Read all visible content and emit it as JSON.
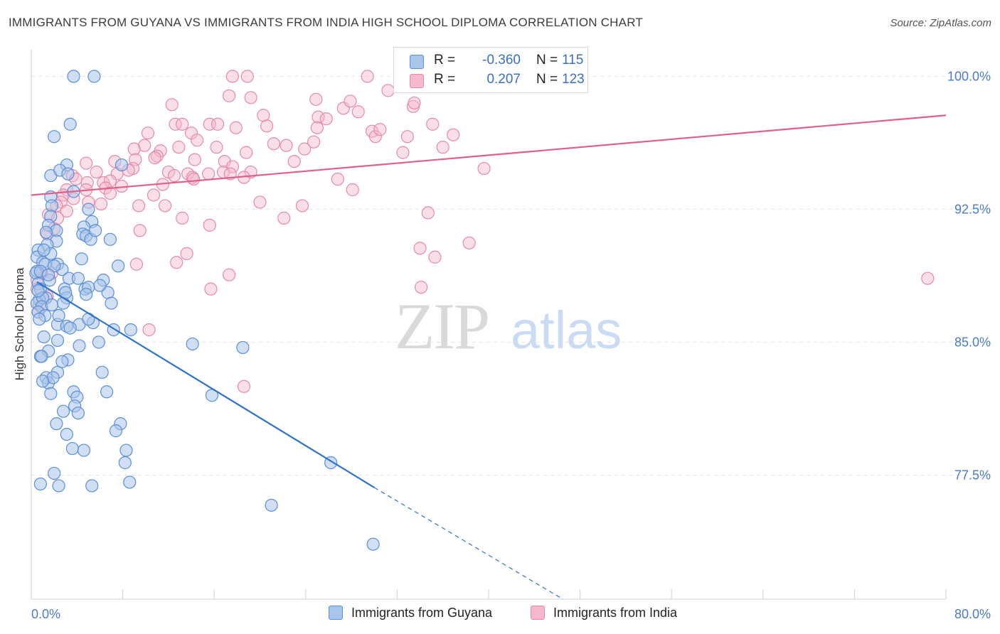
{
  "title": "IMMIGRANTS FROM GUYANA VS IMMIGRANTS FROM INDIA HIGH SCHOOL DIPLOMA CORRELATION CHART",
  "source": "Source: ZipAtlas.com",
  "watermark": {
    "zip": "ZIP",
    "atlas": "atlas"
  },
  "legend_top": {
    "rows": [
      {
        "r_label": "R =",
        "r_value": "-0.360",
        "n_label": "N =",
        "n_value": "115"
      },
      {
        "r_label": "R =",
        "r_value": "0.207",
        "n_label": "N =",
        "n_value": "123"
      }
    ]
  },
  "legend_bottom": {
    "items": [
      "Immigrants from Guyana",
      "Immigrants from India"
    ]
  },
  "colors": {
    "guyana_fill": "#a9c5ea",
    "guyana_stroke": "#5b8fd6",
    "guyana_line": "#2f72cc",
    "india_fill": "#f5b8cc",
    "india_stroke": "#e58aa8",
    "india_line": "#e0608d",
    "tick": "#4a7cc7",
    "grid": "#e3e3e3"
  },
  "chart_data": {
    "type": "scatter",
    "title": "IMMIGRANTS FROM GUYANA VS IMMIGRANTS FROM INDIA HIGH SCHOOL DIPLOMA CORRELATION CHART",
    "xlabel": "",
    "ylabel": "High School Diploma",
    "xlim": [
      0,
      80
    ],
    "ylim": [
      70.5,
      101.5
    ],
    "x_tick_labels": [
      "0.0%",
      "80.0%"
    ],
    "y_ticks": [
      77.5,
      85.0,
      92.5,
      100.0
    ],
    "y_tick_labels": [
      "77.5%",
      "85.0%",
      "92.5%",
      "100.0%"
    ],
    "grid": true,
    "legend_placement": "top-center",
    "series": [
      {
        "name": "Immigrants from Guyana",
        "R": -0.36,
        "N": 115,
        "trend": {
          "x": [
            0.5,
            30.0
          ],
          "y": [
            88.4,
            76.8
          ],
          "dashed_to": {
            "x": 46.5,
            "y": 70.5
          }
        },
        "points": [
          [
            3.7,
            100.0
          ],
          [
            5.5,
            100.0
          ],
          [
            3.4,
            97.3
          ],
          [
            2.0,
            96.6
          ],
          [
            3.1,
            95.0
          ],
          [
            1.7,
            94.4
          ],
          [
            2.5,
            94.7
          ],
          [
            3.2,
            94.5
          ],
          [
            7.9,
            95.0
          ],
          [
            3.7,
            93.5
          ],
          [
            1.7,
            93.2
          ],
          [
            1.8,
            92.7
          ],
          [
            5.0,
            92.5
          ],
          [
            1.7,
            92.1
          ],
          [
            5.3,
            91.8
          ],
          [
            1.5,
            91.6
          ],
          [
            4.6,
            91.5
          ],
          [
            2.2,
            91.3
          ],
          [
            4.5,
            91.1
          ],
          [
            4.8,
            91.0
          ],
          [
            5.2,
            90.8
          ],
          [
            6.9,
            90.8
          ],
          [
            2.2,
            90.7
          ],
          [
            1.4,
            90.5
          ],
          [
            0.6,
            90.2
          ],
          [
            0.5,
            89.8
          ],
          [
            1.7,
            90.0
          ],
          [
            1.0,
            89.5
          ],
          [
            2.3,
            89.4
          ],
          [
            7.6,
            89.3
          ],
          [
            1.2,
            89.4
          ],
          [
            2.7,
            89.1
          ],
          [
            0.5,
            89.0
          ],
          [
            0.4,
            88.9
          ],
          [
            3.3,
            88.6
          ],
          [
            4.1,
            88.6
          ],
          [
            6.3,
            88.5
          ],
          [
            1.6,
            88.5
          ],
          [
            0.6,
            88.3
          ],
          [
            0.8,
            88.0
          ],
          [
            2.9,
            88.0
          ],
          [
            4.7,
            88.0
          ],
          [
            5.0,
            88.1
          ],
          [
            6.7,
            87.8
          ],
          [
            4.8,
            87.7
          ],
          [
            1.3,
            87.5
          ],
          [
            3.1,
            87.5
          ],
          [
            0.7,
            87.4
          ],
          [
            0.5,
            87.2
          ],
          [
            1.0,
            87.5
          ],
          [
            2.8,
            87.2
          ],
          [
            0.9,
            87.0
          ],
          [
            0.6,
            86.7
          ],
          [
            1.2,
            86.5
          ],
          [
            2.3,
            86.0
          ],
          [
            3.1,
            85.9
          ],
          [
            4.2,
            86.0
          ],
          [
            3.4,
            85.8
          ],
          [
            5.4,
            86.1
          ],
          [
            7.2,
            85.7
          ],
          [
            8.7,
            85.7
          ],
          [
            2.3,
            85.1
          ],
          [
            4.2,
            84.8
          ],
          [
            1.5,
            84.5
          ],
          [
            3.2,
            84.0
          ],
          [
            5.9,
            85.0
          ],
          [
            14.1,
            84.9
          ],
          [
            18.5,
            84.7
          ],
          [
            0.8,
            84.2
          ],
          [
            2.3,
            83.3
          ],
          [
            1.3,
            83.0
          ],
          [
            1.5,
            82.7
          ],
          [
            6.2,
            83.3
          ],
          [
            1.7,
            82.1
          ],
          [
            3.7,
            82.2
          ],
          [
            6.6,
            82.2
          ],
          [
            4.0,
            81.9
          ],
          [
            15.8,
            82.0
          ],
          [
            3.8,
            81.4
          ],
          [
            2.8,
            81.1
          ],
          [
            4.1,
            81.0
          ],
          [
            2.2,
            80.4
          ],
          [
            7.8,
            80.4
          ],
          [
            7.4,
            80.0
          ],
          [
            3.6,
            79.0
          ],
          [
            4.6,
            78.9
          ],
          [
            8.3,
            78.9
          ],
          [
            8.2,
            78.2
          ],
          [
            2.0,
            77.6
          ],
          [
            0.8,
            77.0
          ],
          [
            8.6,
            77.1
          ],
          [
            2.4,
            76.9
          ],
          [
            5.3,
            76.9
          ],
          [
            26.2,
            78.2
          ],
          [
            21.0,
            75.8
          ],
          [
            29.9,
            73.6
          ],
          [
            1.1,
            90.2
          ],
          [
            0.8,
            89.0
          ],
          [
            2.0,
            89.3
          ],
          [
            1.5,
            88.8
          ],
          [
            0.6,
            87.9
          ],
          [
            1.8,
            87.1
          ],
          [
            3.0,
            87.8
          ],
          [
            0.7,
            86.3
          ],
          [
            2.4,
            86.5
          ],
          [
            1.1,
            85.3
          ],
          [
            0.9,
            84.2
          ],
          [
            1.9,
            83.0
          ],
          [
            5.0,
            86.3
          ],
          [
            2.7,
            83.9
          ],
          [
            1.0,
            82.8
          ],
          [
            3.1,
            79.8
          ],
          [
            6.0,
            88.2
          ],
          [
            7.0,
            87.2
          ],
          [
            4.4,
            89.7
          ],
          [
            5.6,
            91.3
          ],
          [
            1.3,
            91.2
          ]
        ]
      },
      {
        "name": "Immigrants from India",
        "R": 0.207,
        "N": 123,
        "trend": {
          "x": [
            0.0,
            80.0
          ],
          "y": [
            93.3,
            97.8
          ]
        },
        "points": [
          [
            17.6,
            100.0
          ],
          [
            18.9,
            100.0
          ],
          [
            29.4,
            100.0
          ],
          [
            31.2,
            99.2
          ],
          [
            17.3,
            98.9
          ],
          [
            19.2,
            98.8
          ],
          [
            24.9,
            98.7
          ],
          [
            12.3,
            98.4
          ],
          [
            27.3,
            98.2
          ],
          [
            28.6,
            98.0
          ],
          [
            33.4,
            98.3
          ],
          [
            33.5,
            98.5
          ],
          [
            20.3,
            97.8
          ],
          [
            25.1,
            97.7
          ],
          [
            12.6,
            97.3
          ],
          [
            13.2,
            97.3
          ],
          [
            15.6,
            97.3
          ],
          [
            16.3,
            97.3
          ],
          [
            17.9,
            97.1
          ],
          [
            20.6,
            97.2
          ],
          [
            25.0,
            97.1
          ],
          [
            14.0,
            96.8
          ],
          [
            10.2,
            96.8
          ],
          [
            29.8,
            96.9
          ],
          [
            30.1,
            96.6
          ],
          [
            32.9,
            96.6
          ],
          [
            36.9,
            96.7
          ],
          [
            14.5,
            96.4
          ],
          [
            21.2,
            96.2
          ],
          [
            22.3,
            96.1
          ],
          [
            24.7,
            96.3
          ],
          [
            9.9,
            96.1
          ],
          [
            23.9,
            95.9
          ],
          [
            9.0,
            95.9
          ],
          [
            11.3,
            95.8
          ],
          [
            12.9,
            96.0
          ],
          [
            16.2,
            96.0
          ],
          [
            11.0,
            95.5
          ],
          [
            18.8,
            95.7
          ],
          [
            9.1,
            95.3
          ],
          [
            10.8,
            95.4
          ],
          [
            7.3,
            95.2
          ],
          [
            14.3,
            95.3
          ],
          [
            16.9,
            95.2
          ],
          [
            4.8,
            95.1
          ],
          [
            23.0,
            95.2
          ],
          [
            17.6,
            94.9
          ],
          [
            8.9,
            94.8
          ],
          [
            13.7,
            94.5
          ],
          [
            14.1,
            94.3
          ],
          [
            15.5,
            94.5
          ],
          [
            16.8,
            94.6
          ],
          [
            17.4,
            94.5
          ],
          [
            19.2,
            94.6
          ],
          [
            12.0,
            94.6
          ],
          [
            8.5,
            94.7
          ],
          [
            5.7,
            94.6
          ],
          [
            7.5,
            94.5
          ],
          [
            12.5,
            94.4
          ],
          [
            3.6,
            94.4
          ],
          [
            3.9,
            94.2
          ],
          [
            14.2,
            94.2
          ],
          [
            18.6,
            94.3
          ],
          [
            4.9,
            94.0
          ],
          [
            6.3,
            94.0
          ],
          [
            6.9,
            94.1
          ],
          [
            7.9,
            93.8
          ],
          [
            3.1,
            93.6
          ],
          [
            4.8,
            93.6
          ],
          [
            6.5,
            93.7
          ],
          [
            6.9,
            93.4
          ],
          [
            10.7,
            93.3
          ],
          [
            11.5,
            93.9
          ],
          [
            2.8,
            93.3
          ],
          [
            3.7,
            93.1
          ],
          [
            2.6,
            92.9
          ],
          [
            5.0,
            92.9
          ],
          [
            6.1,
            92.8
          ],
          [
            9.4,
            92.7
          ],
          [
            11.7,
            92.7
          ],
          [
            20.0,
            92.9
          ],
          [
            2.2,
            92.7
          ],
          [
            3.1,
            92.4
          ],
          [
            1.5,
            92.2
          ],
          [
            2.3,
            92.0
          ],
          [
            13.2,
            92.0
          ],
          [
            22.1,
            92.0
          ],
          [
            23.7,
            92.7
          ],
          [
            34.7,
            92.3
          ],
          [
            39.6,
            94.8
          ],
          [
            28.1,
            93.6
          ],
          [
            26.8,
            94.2
          ],
          [
            15.6,
            91.6
          ],
          [
            9.5,
            91.3
          ],
          [
            2.0,
            91.4
          ],
          [
            1.4,
            91.1
          ],
          [
            38.3,
            90.6
          ],
          [
            34.0,
            90.3
          ],
          [
            35.3,
            89.8
          ],
          [
            13.6,
            90.0
          ],
          [
            12.7,
            89.5
          ],
          [
            9.2,
            89.4
          ],
          [
            1.8,
            88.9
          ],
          [
            0.9,
            88.9
          ],
          [
            0.5,
            88.5
          ],
          [
            17.3,
            88.8
          ],
          [
            34.1,
            88.1
          ],
          [
            15.7,
            88.0
          ],
          [
            0.5,
            88.0
          ],
          [
            1.4,
            87.6
          ],
          [
            0.7,
            87.1
          ],
          [
            0.6,
            86.7
          ],
          [
            10.3,
            85.7
          ],
          [
            18.6,
            82.5
          ],
          [
            78.4,
            88.6
          ],
          [
            35.1,
            97.3
          ],
          [
            25.8,
            97.6
          ],
          [
            27.9,
            98.6
          ],
          [
            30.5,
            97.0
          ],
          [
            32.5,
            95.7
          ],
          [
            36.0,
            96.0
          ]
        ]
      }
    ]
  }
}
